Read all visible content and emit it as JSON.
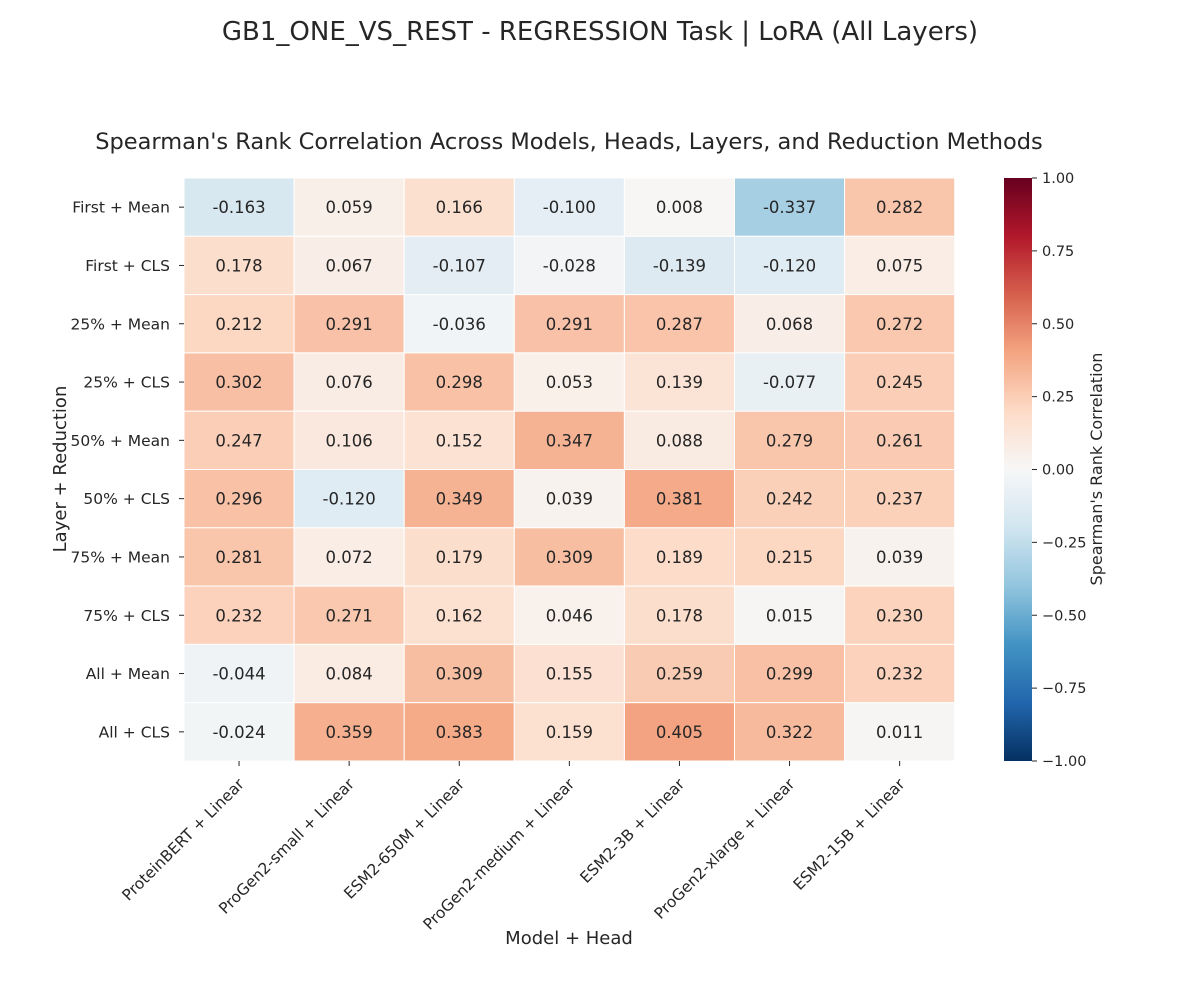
{
  "chart_data": {
    "type": "heatmap",
    "suptitle": "GB1_ONE_VS_REST - REGRESSION Task | LoRA (All Layers)",
    "title": "Spearman's Rank Correlation Across Models, Heads, Layers, and Reduction Methods",
    "xlabel": "Model + Head",
    "ylabel": "Layer + Reduction",
    "columns": [
      "ProteinBERT + Linear",
      "ProGen2-small + Linear",
      "ESM2-650M + Linear",
      "ProGen2-medium + Linear",
      "ESM2-3B + Linear",
      "ProGen2-xlarge + Linear",
      "ESM2-15B + Linear"
    ],
    "rows": [
      "First + Mean",
      "First + CLS",
      "25% + Mean",
      "25% + CLS",
      "50% + Mean",
      "50% + CLS",
      "75% + Mean",
      "75% + CLS",
      "All + Mean",
      "All + CLS"
    ],
    "values": [
      [
        -0.163,
        0.059,
        0.166,
        -0.1,
        0.008,
        -0.337,
        0.282
      ],
      [
        0.178,
        0.067,
        -0.107,
        -0.028,
        -0.139,
        -0.12,
        0.075
      ],
      [
        0.212,
        0.291,
        -0.036,
        0.291,
        0.287,
        0.068,
        0.272
      ],
      [
        0.302,
        0.076,
        0.298,
        0.053,
        0.139,
        -0.077,
        0.245
      ],
      [
        0.247,
        0.106,
        0.152,
        0.347,
        0.088,
        0.279,
        0.261
      ],
      [
        0.296,
        -0.12,
        0.349,
        0.039,
        0.381,
        0.242,
        0.237
      ],
      [
        0.281,
        0.072,
        0.179,
        0.309,
        0.189,
        0.215,
        0.039
      ],
      [
        0.232,
        0.271,
        0.162,
        0.046,
        0.178,
        0.015,
        0.23
      ],
      [
        -0.044,
        0.084,
        0.309,
        0.155,
        0.259,
        0.299,
        0.232
      ],
      [
        -0.024,
        0.359,
        0.383,
        0.159,
        0.405,
        0.322,
        0.011
      ]
    ],
    "colorbar": {
      "label": "Spearman's Rank Correlation",
      "range": [
        -1,
        1
      ],
      "ticks": [
        1.0,
        0.75,
        0.5,
        0.25,
        0.0,
        -0.25,
        -0.5,
        -0.75,
        -1.0
      ],
      "tick_labels": [
        "1.00",
        "0.75",
        "0.50",
        "0.25",
        "0.00",
        "−0.25",
        "−0.50",
        "−0.75",
        "−1.00"
      ],
      "colormap": "RdBu_r"
    },
    "value_format": "3 decimals"
  }
}
